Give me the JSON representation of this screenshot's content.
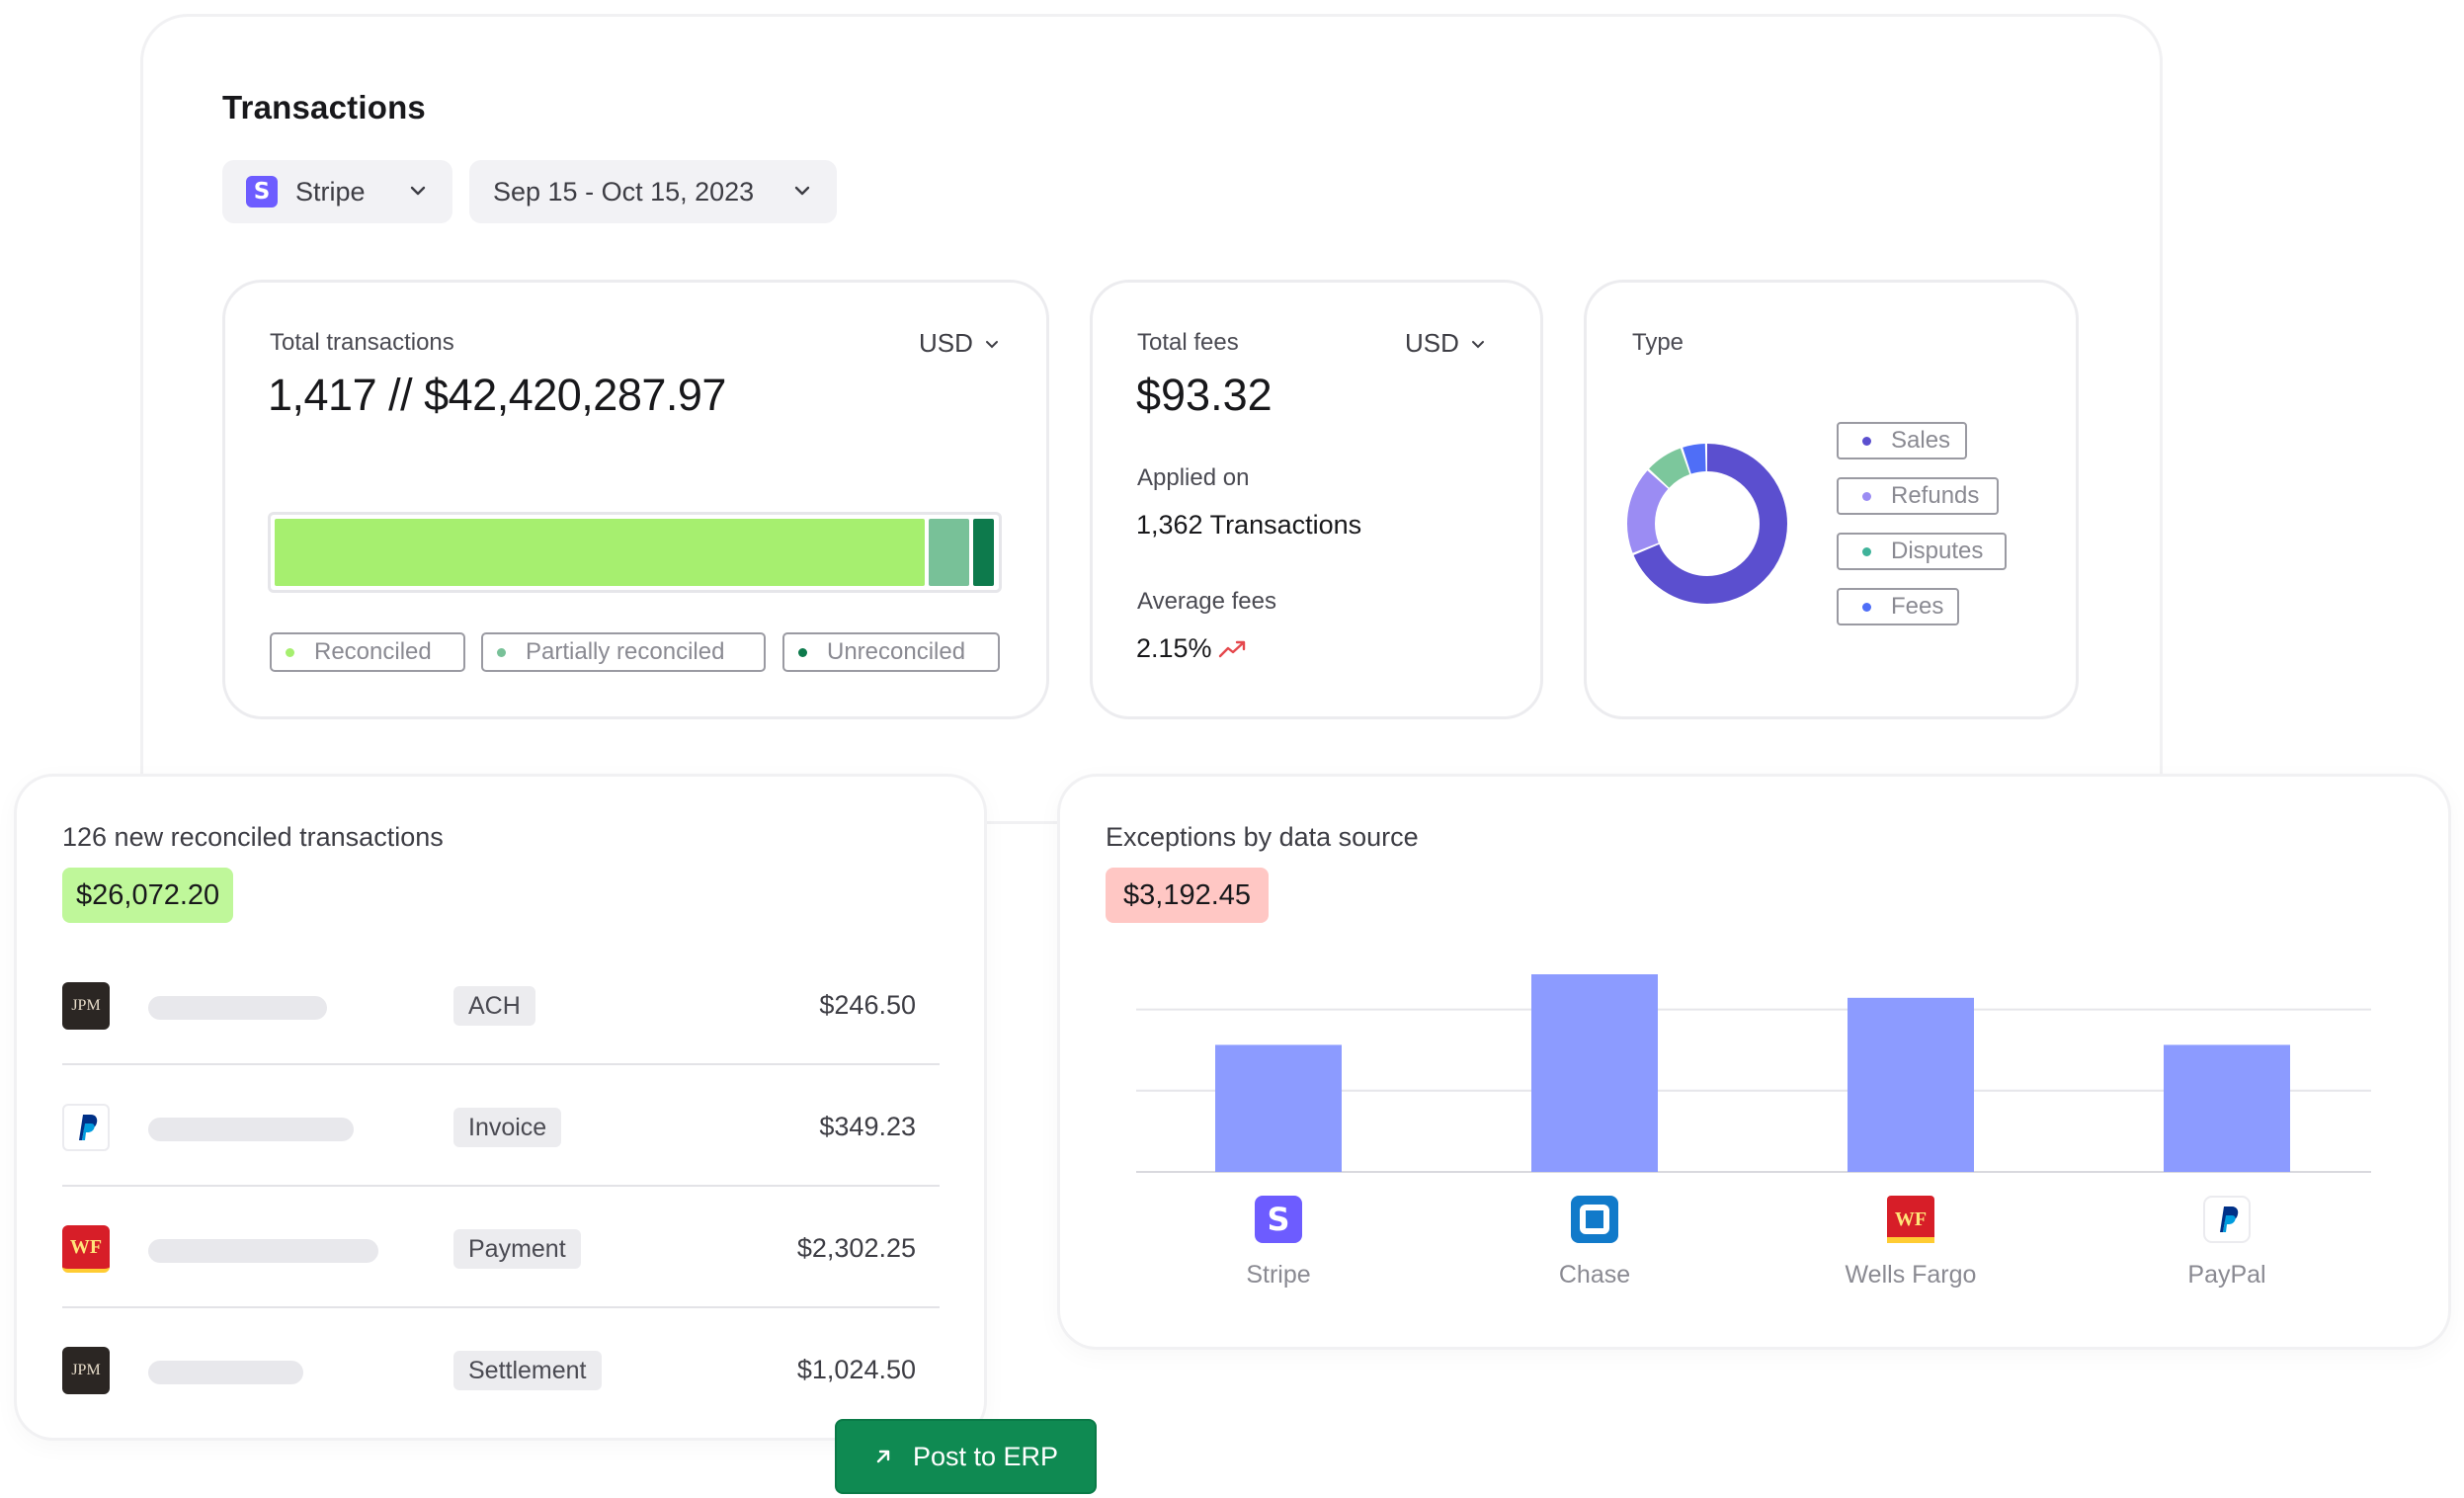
{
  "page": {
    "title": "Transactions"
  },
  "filters": {
    "source": {
      "label": "Stripe",
      "icon": "stripe-logo"
    },
    "date_range": {
      "label": "Sep 15 - Oct 15, 2023"
    }
  },
  "total_transactions": {
    "label": "Total transactions",
    "currency": "USD",
    "value": "1,417 // $42,420,287.97",
    "breakdown": {
      "reconciled": 0.905,
      "partially_reconciled": 0.056,
      "unreconciled": 0.029
    },
    "legend": [
      "Reconciled",
      "Partially reconciled",
      "Unreconciled"
    ],
    "colors": {
      "reconciled": "#a6ef6f",
      "partially_reconciled": "#78c198",
      "unreconciled": "#0d7a4c"
    }
  },
  "total_fees": {
    "label": "Total fees",
    "currency": "USD",
    "value": "$93.32",
    "applied_label": "Applied on",
    "applied_value": "1,362 Transactions",
    "avg_label": "Average fees",
    "avg_value": "2.15%",
    "trend_icon": "trend-up-icon"
  },
  "type_card": {
    "label": "Type",
    "legend": [
      {
        "name": "Sales",
        "color": "#5b4fcf",
        "share": 0.69
      },
      {
        "name": "Refunds",
        "color": "#9b8cf3",
        "share": 0.18
      },
      {
        "name": "Disputes",
        "color": "#7cc79c",
        "share": 0.08
      },
      {
        "name": "Fees",
        "color": "#4f6ef7",
        "share": 0.05
      }
    ]
  },
  "reconciled_card": {
    "title": "126 new reconciled transactions",
    "amount": "$26,072.20",
    "rows": [
      {
        "logo": "JPM",
        "logo_type": "jpm",
        "tag": "ACH",
        "amount": "$246.50"
      },
      {
        "logo": "PayPal",
        "logo_type": "paypal",
        "tag": "Invoice",
        "amount": "$349.23"
      },
      {
        "logo": "WF",
        "logo_type": "wf",
        "tag": "Payment",
        "amount": "$2,302.25"
      },
      {
        "logo": "JPM",
        "logo_type": "jpm",
        "tag": "Settlement",
        "amount": "$1,024.50"
      }
    ]
  },
  "exceptions_card": {
    "title": "Exceptions by data source",
    "amount": "$3,192.45"
  },
  "chart_data": {
    "type": "bar",
    "categories": [
      "Stripe",
      "Chase",
      "Wells Fargo",
      "PayPal"
    ],
    "values": [
      2.7,
      4.2,
      3.7,
      2.7
    ],
    "ylim": [
      0,
      4.2
    ],
    "grid": true,
    "color": "#8c9bff",
    "title": "",
    "xlabel": "",
    "ylabel": ""
  },
  "actions": {
    "post_to_erp": "Post to ERP"
  }
}
